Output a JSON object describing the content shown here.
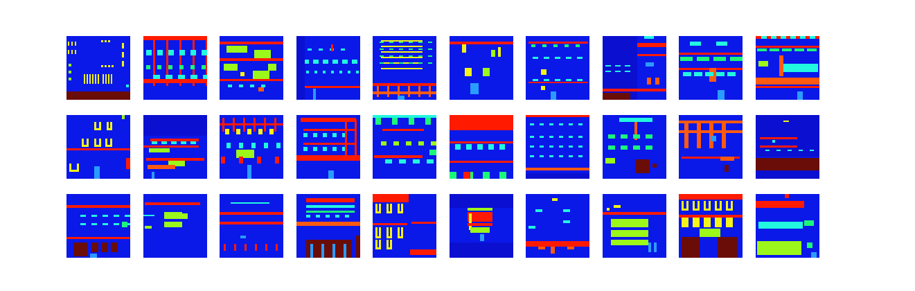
{
  "figure": {
    "rows": 3,
    "columns": 10,
    "panel_count": 30,
    "axes_visible": false,
    "palette": {
      "background": "#ffffff",
      "facade": "#0a18e8",
      "wall_dark": "#0b0fd0",
      "red": "#ff1a00",
      "orange": "#ff5a10",
      "yellow": "#f4f418",
      "lime": "#9cf71a",
      "green": "#1cf77a",
      "cyan": "#22f7e0",
      "sky": "#2a9cff",
      "brown": "#6a0c08"
    },
    "panels": [
      {
        "id": 1,
        "label": ""
      },
      {
        "id": 2,
        "label": ""
      },
      {
        "id": 3,
        "label": ""
      },
      {
        "id": 4,
        "label": ""
      },
      {
        "id": 5,
        "label": ""
      },
      {
        "id": 6,
        "label": ""
      },
      {
        "id": 7,
        "label": ""
      },
      {
        "id": 8,
        "label": ""
      },
      {
        "id": 9,
        "label": ""
      },
      {
        "id": 10,
        "label": ""
      },
      {
        "id": 11,
        "label": ""
      },
      {
        "id": 12,
        "label": ""
      },
      {
        "id": 13,
        "label": ""
      },
      {
        "id": 14,
        "label": ""
      },
      {
        "id": 15,
        "label": ""
      },
      {
        "id": 16,
        "label": ""
      },
      {
        "id": 17,
        "label": ""
      },
      {
        "id": 18,
        "label": ""
      },
      {
        "id": 19,
        "label": ""
      },
      {
        "id": 20,
        "label": ""
      },
      {
        "id": 21,
        "label": ""
      },
      {
        "id": 22,
        "label": ""
      },
      {
        "id": 23,
        "label": ""
      },
      {
        "id": 24,
        "label": ""
      },
      {
        "id": 25,
        "label": ""
      },
      {
        "id": 26,
        "label": ""
      },
      {
        "id": 27,
        "label": ""
      },
      {
        "id": 28,
        "label": ""
      },
      {
        "id": 29,
        "label": ""
      },
      {
        "id": 30,
        "label": ""
      }
    ]
  }
}
